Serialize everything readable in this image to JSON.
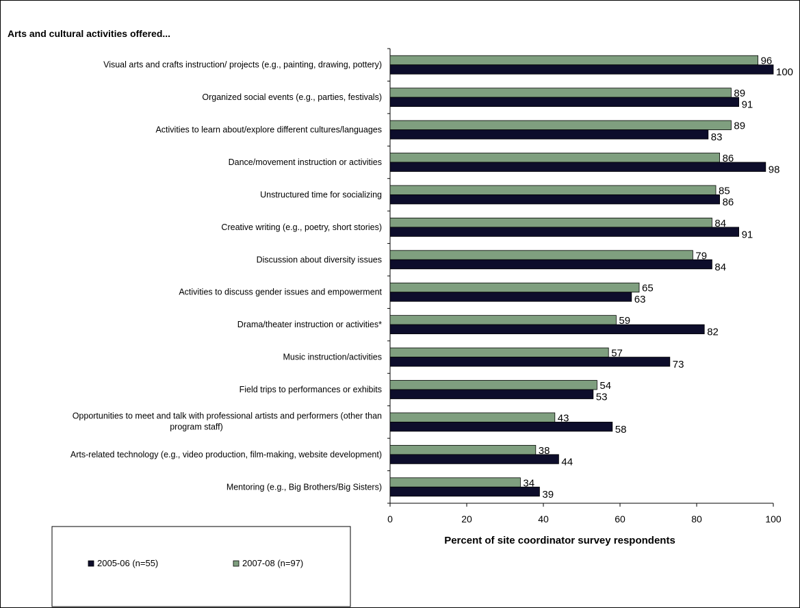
{
  "chart_data": {
    "type": "bar",
    "orientation": "horizontal",
    "title": "Arts and cultural activities offered...",
    "xlabel": "Percent of site coordinator survey respondents",
    "xlim": [
      0,
      100
    ],
    "xticks": [
      "0",
      "20",
      "40",
      "60",
      "80",
      "100"
    ],
    "grid": false,
    "legend_position": "bottom-left",
    "categories": [
      [
        "Visual arts and crafts instruction/ projects (e.g., painting, drawing, pottery)"
      ],
      [
        "Organized social events (e.g., parties, festivals)"
      ],
      [
        "Activities to learn about/explore different cultures/languages"
      ],
      [
        "Dance/movement instruction or activities"
      ],
      [
        "Unstructured time for socializing"
      ],
      [
        "Creative writing (e.g., poetry, short stories)"
      ],
      [
        "Discussion about diversity issues"
      ],
      [
        "Activities to discuss gender issues and empowerment"
      ],
      [
        "Drama/theater instruction or activities*"
      ],
      [
        "Music instruction/activities"
      ],
      [
        "Field trips to performances or exhibits"
      ],
      [
        "Opportunities to meet and talk with professional artists and performers (other than",
        "program staff)"
      ],
      [
        "Arts-related technology (e.g., video production, film-making, website development)"
      ],
      [
        "Mentoring (e.g., Big Brothers/Big Sisters)"
      ]
    ],
    "series": [
      {
        "name": "2007-08 (n=97)",
        "color": "#7f9f7f",
        "values": [
          96,
          89,
          89,
          86,
          85,
          84,
          79,
          65,
          59,
          57,
          54,
          43,
          38,
          34
        ]
      },
      {
        "name": "2005-06 (n=55)",
        "color": "#0d0d2b",
        "values": [
          100,
          91,
          83,
          98,
          86,
          91,
          84,
          63,
          82,
          73,
          53,
          58,
          44,
          39
        ]
      }
    ],
    "legend_order": [
      "2005-06 (n=55)",
      "2007-08 (n=97)"
    ]
  }
}
